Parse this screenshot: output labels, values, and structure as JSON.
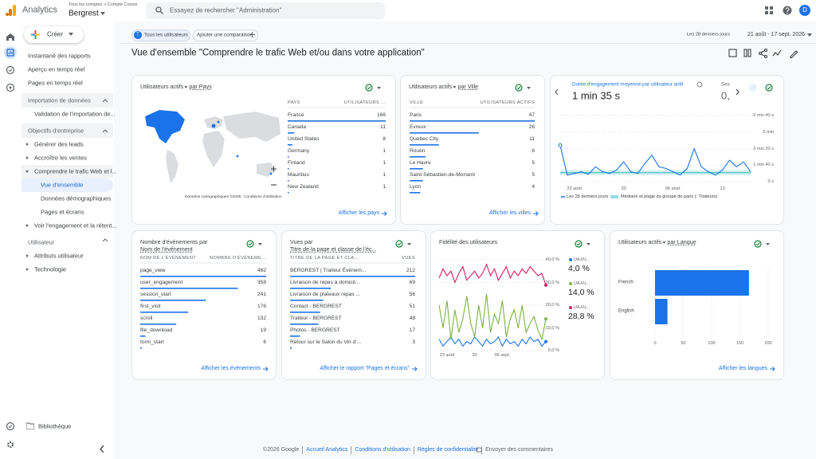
{
  "header": {
    "product": "Analytics",
    "breadcrumb": "Tous les comptes > Compte Coesis",
    "property": "Bergrest",
    "search": "Essayez de rechercher \"Administration\"",
    "avatar": "D"
  },
  "sidebar": {
    "create": "Créer",
    "top_items": [
      "Instantané des rapports",
      "Aperçu en temps réel",
      "Pages en temps réel"
    ],
    "import": {
      "title": "Importation de données",
      "items": [
        "Validation de l'importation de..."
      ]
    },
    "goals": {
      "title": "Objectifs d'entreprise",
      "items": [
        "Générer des leads",
        "Accroître les ventes",
        "Comprendre le trafic Web et l..."
      ],
      "subitems": [
        "Vue d'ensemble",
        "Données démographiques",
        "Pages et écrans"
      ],
      "last": "Voir l'engagement et la rétent..."
    },
    "user": {
      "title": "Utilisateur",
      "items": [
        "Attributs utilisateur",
        "Technologie"
      ]
    },
    "library": "Bibliothèque"
  },
  "toolbar": {
    "chip_badge": "T",
    "chip": "Tous les utilisateurs",
    "compare": "Ajouter une comparaison",
    "period": "Les 28 derniers jours",
    "range": "21 août - 17 sept. 2026"
  },
  "page_title": "Vue d'ensemble \"Comprendre le trafic Web et/ou dans votre application\"",
  "cards": {
    "countries": {
      "title": [
        "Utilisateurs actifs",
        "par Pays"
      ],
      "columns": [
        "PAYS",
        "UTILISATEURS ..."
      ],
      "rows": [
        {
          "label": "France",
          "value": 166
        },
        {
          "label": "Canada",
          "value": 11
        },
        {
          "label": "United States",
          "value": 8
        },
        {
          "label": "Germany",
          "value": 1
        },
        {
          "label": "Finland",
          "value": 1
        },
        {
          "label": "Mauritius",
          "value": 1
        },
        {
          "label": "New Zealand",
          "value": 1
        }
      ],
      "map_credit": "Données cartographiques ©2026",
      "map_terms": "Conditions d'utilisation",
      "link": "Afficher les pays"
    },
    "cities": {
      "title": [
        "Utilisateurs actifs",
        "par Ville"
      ],
      "columns": [
        "VILLE",
        "UTILISATEURS ACTIFS"
      ],
      "rows": [
        {
          "label": "Paris",
          "value": 47
        },
        {
          "label": "Evreux",
          "value": 26
        },
        {
          "label": "Quebec City",
          "value": 11
        },
        {
          "label": "Rouen",
          "value": 6
        },
        {
          "label": "Le Havre",
          "value": 5
        },
        {
          "label": "Saint-Sébastien-de-Morsent",
          "value": 5
        },
        {
          "label": "Lyon",
          "value": 4
        }
      ],
      "link": "Afficher les villes"
    },
    "engagement": {
      "metric": "Durée d'engagement moyenne par utilisateur actif",
      "value": "1 min 35 s",
      "second_metric": {
        "title": "Ses",
        "value": "0,"
      },
      "chart": {
        "type": "line",
        "categories": [
          null,
          null,
          "23 août",
          null,
          null,
          null,
          null,
          null,
          null,
          "30",
          null,
          null,
          null,
          null,
          null,
          null,
          "06 sept.",
          null,
          null,
          null,
          null,
          null,
          null,
          "13",
          null,
          null,
          null,
          null
        ],
        "ylim": [
          0,
          400
        ],
        "yticks": [
          {
            "value": 400,
            "label": "6 min 40 s"
          },
          {
            "value": 300,
            "label": "5 min"
          },
          {
            "value": 200,
            "label": "3 min 20 s"
          },
          {
            "value": 100,
            "label": "1 min 40 s"
          },
          {
            "value": 0,
            "label": "0 s"
          }
        ],
        "series": [
          {
            "name": "Les 28 derniers jours",
            "color": "#1a73e8",
            "values": [
              220,
              40,
              50,
              60,
              45,
              90,
              60,
              50,
              70,
              120,
              60,
              50,
              110,
              160,
              90,
              80,
              60,
              40,
              80,
              200,
              90,
              60,
              40,
              70,
              130,
              90,
              120,
              60
            ]
          }
        ],
        "peer": {
          "name": "Médiane et plage du groupe de pairs (: Traiteurs)",
          "color": "#4fc3c9",
          "low": 40,
          "median": 55,
          "high": 70
        }
      }
    },
    "events": {
      "title": [
        "Nombre d'événements par",
        "Nom de l'événement"
      ],
      "columns": [
        "NOM DE L'ÉVÉNEMENT",
        "NOMBRE D'ÉVÉNEME..."
      ],
      "rows": [
        {
          "label": "page_view",
          "value": 462
        },
        {
          "label": "user_engagement",
          "value": 358
        },
        {
          "label": "session_start",
          "value": 241
        },
        {
          "label": "first_visit",
          "value": 176
        },
        {
          "label": "scroll",
          "value": 132
        },
        {
          "label": "file_download",
          "value": 19
        },
        {
          "label": "form_start",
          "value": 6
        }
      ],
      "link": "Afficher les événements"
    },
    "pages": {
      "title": [
        "Vues par",
        "Titre de la page et classe de l'éc..."
      ],
      "columns": [
        "TITRE DE LA PAGE ET CLA...",
        "VUES"
      ],
      "rows": [
        {
          "label": "BERGREST | Traiteur Événem...",
          "value": 212
        },
        {
          "label": "Livraison de repas à domicil...",
          "value": 69
        },
        {
          "label": "Livraison de plateaux repas ...",
          "value": 56
        },
        {
          "label": "Contact - BERGREST",
          "value": 51
        },
        {
          "label": "Traiteur - BERGREST",
          "value": 48
        },
        {
          "label": "Photos - BERGREST",
          "value": 17
        },
        {
          "label": "Retour sur le Salon du Vin d'...",
          "value": 3
        }
      ],
      "link": "Afficher le rapport \"Pages et écrans\""
    },
    "loyalty": {
      "title": [
        "Fidélité des utilisateurs"
      ],
      "chart": {
        "type": "line",
        "categories": [
          null,
          null,
          "23 août",
          null,
          null,
          null,
          null,
          null,
          null,
          "30",
          null,
          null,
          null,
          null,
          null,
          null,
          "06 sept.",
          null,
          null,
          null,
          null,
          null,
          null,
          null,
          null,
          null,
          null,
          null
        ],
        "ylim": [
          0,
          40
        ],
        "yticks": [
          {
            "value": 40,
            "label": "40,0 %"
          },
          {
            "value": 30,
            "label": "30,0 %"
          },
          {
            "value": 20,
            "label": "20,0 %"
          },
          {
            "value": 10,
            "label": "10,0 %"
          },
          {
            "value": 0,
            "label": "0,0 %"
          }
        ],
        "series": [
          {
            "name": "UAJ/U...",
            "color": "#1a73e8",
            "latest_label": "4,0 %",
            "values": [
              5,
              2,
              4,
              6,
              3,
              5,
              2,
              4,
              3,
              6,
              4,
              2,
              5,
              3,
              4,
              6,
              2,
              5,
              3,
              4,
              2,
              5,
              3,
              6,
              4,
              5,
              2,
              4
            ]
          },
          {
            "name": "UAJ/U...",
            "color": "#7cb342",
            "latest_label": "14,0 %",
            "values": [
              20,
              10,
              22,
              5,
              18,
              8,
              14,
              24,
              12,
              6,
              20,
              10,
              25,
              8,
              16,
              12,
              22,
              6,
              14,
              18,
              10,
              20,
              8,
              12,
              15,
              9,
              5,
              14
            ]
          },
          {
            "name": "UAJ/U...",
            "color": "#d81b60",
            "latest_label": "28,8 %",
            "values": [
              32,
              36,
              33,
              35,
              30,
              34,
              37,
              31,
              33,
              35,
              32,
              34,
              38,
              33,
              36,
              31,
              34,
              37,
              32,
              35,
              33,
              36,
              34,
              37,
              35,
              33,
              34,
              28.8
            ]
          }
        ]
      }
    },
    "languages": {
      "title": [
        "Utilisateurs actifs",
        "par Langue"
      ],
      "chart": {
        "type": "bar",
        "categories": [
          "French",
          "English"
        ],
        "values": [
          166,
          22
        ],
        "color": "#1a73e8",
        "xlim": [
          0,
          200
        ],
        "xticks": [
          0,
          50,
          100,
          150,
          200
        ]
      },
      "link": "Afficher les langues"
    }
  },
  "footer": [
    "©2026 Google",
    "Accueil Analytics",
    "Conditions d'utilisation",
    "Règles de confidentialité",
    "Envoyer des commentaires"
  ]
}
